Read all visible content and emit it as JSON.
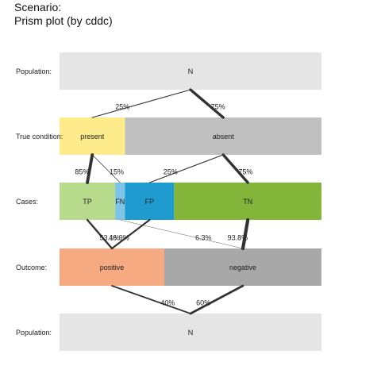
{
  "title": {
    "line1": "Scenario:",
    "line2": "Prism plot (by cddc)"
  },
  "rows": [
    {
      "key": "pop_top",
      "label": "Population:",
      "boxes": [
        {
          "key": "N",
          "label": "N",
          "share": 1.0,
          "color": "#e5e5e5"
        }
      ]
    },
    {
      "key": "cond",
      "label": "True condition:",
      "boxes": [
        {
          "key": "present",
          "label": "present",
          "share": 0.25,
          "color": "#fdeb8c"
        },
        {
          "key": "absent",
          "label": "absent",
          "share": 0.75,
          "color": "#c0c0c0"
        }
      ]
    },
    {
      "key": "cases",
      "label": "Cases:",
      "boxes": [
        {
          "key": "TP",
          "label": "TP",
          "share": 0.2125,
          "color": "#b8da8d"
        },
        {
          "key": "FN",
          "label": "FN",
          "share": 0.0375,
          "color": "#7ec4e7"
        },
        {
          "key": "FP",
          "label": "FP",
          "share": 0.1875,
          "color": "#1f9bd0"
        },
        {
          "key": "TN",
          "label": "TN",
          "share": 0.5625,
          "color": "#82b53a"
        }
      ]
    },
    {
      "key": "outcome",
      "label": "Outcome:",
      "boxes": [
        {
          "key": "positive",
          "label": "positive",
          "share": 0.4,
          "color": "#f5aa81"
        },
        {
          "key": "negative",
          "label": "negative",
          "share": 0.6,
          "color": "#a8a8a8"
        }
      ]
    },
    {
      "key": "pop_bottom",
      "label": "Population:",
      "boxes": [
        {
          "key": "N",
          "label": "N",
          "share": 1.0,
          "color": "#e5e5e5"
        }
      ]
    }
  ],
  "links": [
    {
      "from": "pop_top.N",
      "to": "cond.present",
      "value": 0.25,
      "label": "25%"
    },
    {
      "from": "pop_top.N",
      "to": "cond.absent",
      "value": 0.75,
      "label": "75%"
    },
    {
      "from": "cond.present",
      "to": "cases.TP",
      "value": 0.85,
      "label": "85%"
    },
    {
      "from": "cond.present",
      "to": "cases.FN",
      "value": 0.15,
      "label": "15%"
    },
    {
      "from": "cond.absent",
      "to": "cases.FP",
      "value": 0.25,
      "label": "25%"
    },
    {
      "from": "cond.absent",
      "to": "cases.TN",
      "value": 0.75,
      "label": "75%"
    },
    {
      "from": "cases.TP",
      "to": "outcome.positive",
      "value": 0.531,
      "label": "53.1%"
    },
    {
      "from": "cases.FP",
      "to": "outcome.positive",
      "value": 0.469,
      "label": "46.9%"
    },
    {
      "from": "cases.FN",
      "to": "outcome.negative",
      "value": 0.063,
      "label": "6.3%"
    },
    {
      "from": "cases.TN",
      "to": "outcome.negative",
      "value": 0.938,
      "label": "93.8%"
    },
    {
      "from": "outcome.positive",
      "to": "pop_bottom.N",
      "value": 0.4,
      "label": "40%"
    },
    {
      "from": "outcome.negative",
      "to": "pop_bottom.N",
      "value": 0.6,
      "label": "60%"
    }
  ],
  "colors": {
    "link": "#333333",
    "text": "#222222"
  }
}
